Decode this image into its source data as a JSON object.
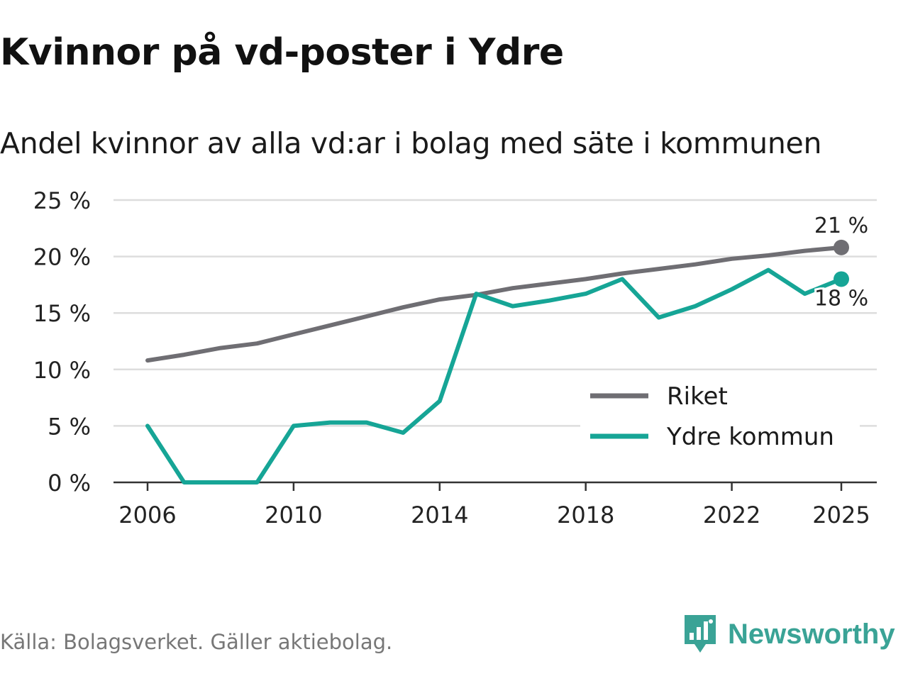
{
  "title": "Kvinnor på vd-poster i Ydre",
  "subtitle": "Andel kvinnor av alla vd:ar i bolag med säte i kommunen",
  "source": "Källa: Bolagsverket. Gäller aktiebolag.",
  "brand": "Newsworthy",
  "colors": {
    "riket": "#6f6e73",
    "ydre": "#16a596",
    "grid": "#dddddd",
    "axis": "#333333",
    "brand": "#3aa396"
  },
  "chart_data": {
    "type": "line",
    "title": "Kvinnor på vd-poster i Ydre",
    "subtitle": "Andel kvinnor av alla vd:ar i bolag med säte i kommunen",
    "xlabel": "",
    "ylabel": "",
    "x": [
      2006,
      2007,
      2008,
      2009,
      2010,
      2011,
      2012,
      2013,
      2014,
      2015,
      2016,
      2017,
      2018,
      2019,
      2020,
      2021,
      2022,
      2023,
      2024,
      2025
    ],
    "xticks": [
      2006,
      2010,
      2014,
      2018,
      2022,
      2025
    ],
    "xtick_labels": [
      "2006",
      "2010",
      "2014",
      "2018",
      "2022",
      "2025"
    ],
    "xlim": [
      2006,
      2025
    ],
    "ylim": [
      0,
      25
    ],
    "yticks": [
      0,
      5,
      10,
      15,
      20,
      25
    ],
    "ytick_labels": [
      "0 %",
      "5 %",
      "10 %",
      "15 %",
      "20 %",
      "25 %"
    ],
    "grid": true,
    "legend_position": "bottom-right",
    "series": [
      {
        "name": "Riket",
        "key": "riket",
        "values": [
          10.8,
          11.3,
          11.9,
          12.3,
          13.1,
          13.9,
          14.7,
          15.5,
          16.2,
          16.6,
          17.2,
          17.6,
          18.0,
          18.5,
          18.9,
          19.3,
          19.8,
          20.1,
          20.5,
          20.8
        ],
        "end_label": "21 %"
      },
      {
        "name": "Ydre kommun",
        "key": "ydre",
        "values": [
          5.0,
          0.0,
          0.0,
          0.0,
          5.0,
          5.3,
          5.3,
          4.4,
          7.2,
          16.7,
          15.6,
          16.1,
          16.7,
          18.0,
          14.6,
          15.6,
          17.1,
          18.8,
          16.7,
          18.0
        ],
        "end_label": "18 %"
      }
    ]
  }
}
